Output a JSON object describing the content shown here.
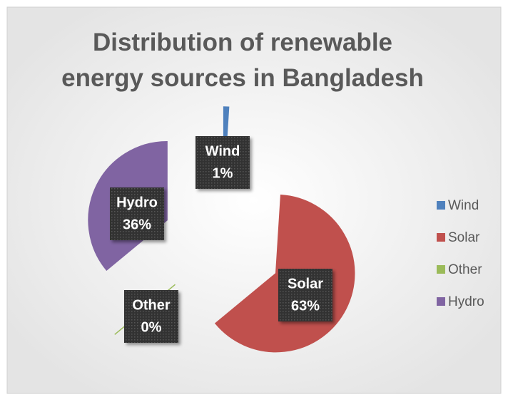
{
  "chart_data": {
    "type": "pie",
    "title": "Distribution of renewable energy sources in Bangladesh",
    "categories": [
      "Wind",
      "Solar",
      "Other",
      "Hydro"
    ],
    "values": [
      1,
      63,
      0,
      36
    ],
    "value_labels": [
      "1%",
      "63%",
      "0%",
      "36%"
    ],
    "colors": [
      "#4f81bd",
      "#c0504d",
      "#9bbb59",
      "#8064a2"
    ],
    "exploded": true,
    "legend": "right"
  }
}
